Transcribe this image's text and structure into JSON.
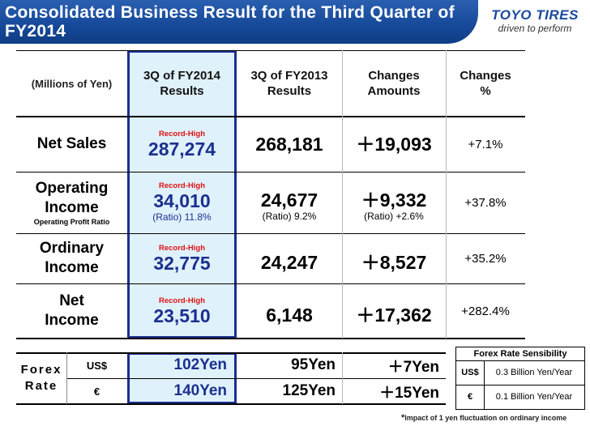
{
  "header": {
    "title": "Consolidated Business Result for the Third Quarter of FY2014"
  },
  "logo": {
    "name": "TOYO TIRES",
    "tagline": "driven to perform"
  },
  "table": {
    "columns": {
      "unit": "(Millions of Yen)",
      "current": [
        "3Q of FY2014",
        "Results"
      ],
      "previous": [
        "3Q of FY2013",
        "Results"
      ],
      "change_amount": [
        "Changes",
        "Amounts"
      ],
      "change_pct": [
        "Changes",
        "%"
      ]
    },
    "rows": [
      {
        "label": [
          "Net Sales"
        ],
        "note": "",
        "record": "Record-High",
        "current": "287,274",
        "previous": "268,181",
        "change": "＋19,093",
        "pct": "+7.1%"
      },
      {
        "label": [
          "Operating",
          "Income"
        ],
        "note": "Operating Profit Ratio",
        "record": "Record-High",
        "current": "34,010",
        "current_ratio": "(Ratio) 11.8%",
        "previous": "24,677",
        "previous_ratio": "(Ratio) 9.2%",
        "change": "＋9,332",
        "change_ratio": "(Ratio) +2.6%",
        "pct": "+37.8%"
      },
      {
        "label": [
          "Ordinary",
          "Income"
        ],
        "note": "",
        "record": "Record-High",
        "current": "32,775",
        "previous": "24,247",
        "change": "＋8,527",
        "pct": "+35.2%"
      },
      {
        "label": [
          "Net",
          "Income"
        ],
        "note": "",
        "record": "Record-High",
        "current": "23,510",
        "previous": "6,148",
        "change": "＋17,362",
        "pct": "+282.4%"
      }
    ]
  },
  "forex": {
    "label": [
      "Forex",
      "Rate"
    ],
    "rows": [
      {
        "currency": "US$",
        "current": "102Yen",
        "previous": "95Yen",
        "change": "＋7Yen"
      },
      {
        "currency": "€",
        "current": "140Yen",
        "previous": "125Yen",
        "change": "＋15Yen"
      }
    ]
  },
  "sensitivity": {
    "title": "Forex Rate Sensibility",
    "rows": [
      {
        "currency": "US$",
        "value": "0.3 Billion Yen/Year"
      },
      {
        "currency": "€",
        "value": "0.1 Billion Yen/Year"
      }
    ],
    "note_mark": "*",
    "note": "Impact of 1 yen fluctuation on ordinary income"
  }
}
